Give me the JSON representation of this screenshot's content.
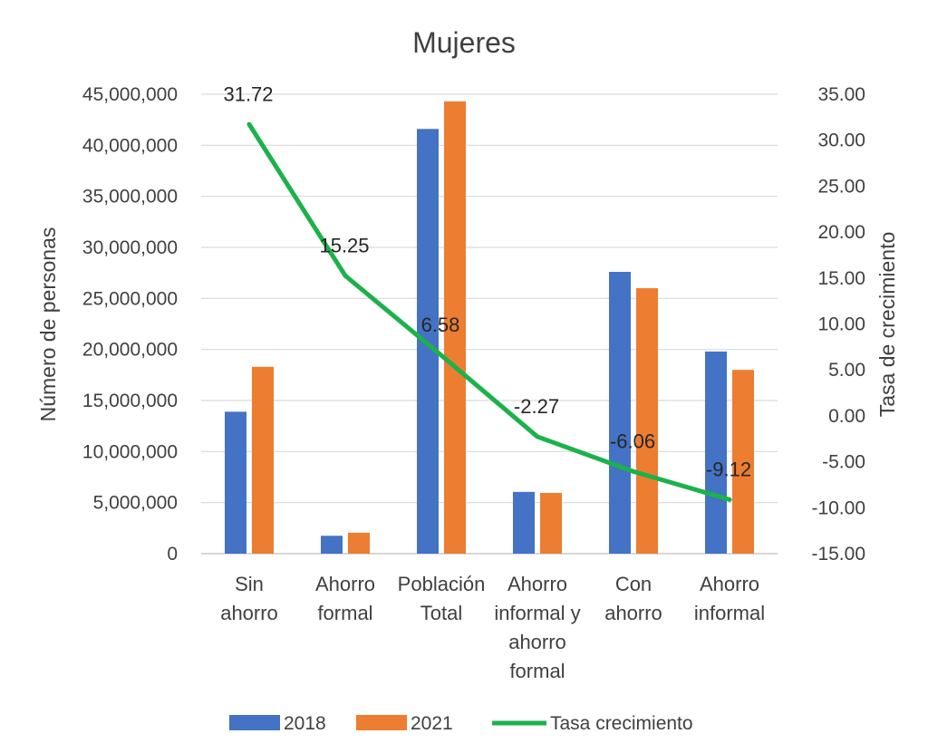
{
  "chart_data": {
    "type": "bar",
    "title": "Mujeres",
    "categories": [
      [
        "Sin",
        "ahorro"
      ],
      [
        "Ahorro",
        "formal"
      ],
      [
        "Población",
        "Total"
      ],
      [
        "Ahorro",
        "informal y",
        "ahorro",
        "formal"
      ],
      [
        "Con",
        "ahorro"
      ],
      [
        "Ahorro",
        "informal"
      ]
    ],
    "series": [
      {
        "name": "2018",
        "type": "bar",
        "axis": "left",
        "color": "#4472C4",
        "values": [
          13900000,
          1750000,
          41600000,
          6050000,
          27600000,
          19800000
        ]
      },
      {
        "name": "2021",
        "type": "bar",
        "axis": "left",
        "color": "#ED7D31",
        "values": [
          18300000,
          2050000,
          44300000,
          5950000,
          26000000,
          18000000
        ]
      },
      {
        "name": "Tasa crecimiento",
        "type": "line",
        "axis": "right",
        "color": "#1DB14B",
        "values": [
          31.72,
          15.25,
          6.58,
          -2.27,
          -6.06,
          -9.12
        ],
        "labels": [
          "31.72",
          "15.25",
          "6.58",
          "-2.27",
          "-6.06",
          "-9.12"
        ]
      }
    ],
    "ylabel": "Número de personas",
    "y2label": "Tasa de crecimiento",
    "ylim": [
      0,
      45000000
    ],
    "y2lim": [
      -15,
      35
    ],
    "yticks": [
      "0",
      "5,000,000",
      "10,000,000",
      "15,000,000",
      "20,000,000",
      "25,000,000",
      "30,000,000",
      "35,000,000",
      "40,000,000",
      "45,000,000"
    ],
    "y2ticks": [
      "-15.00",
      "-10.00",
      "-5.00",
      "0.00",
      "5.00",
      "10.00",
      "15.00",
      "20.00",
      "25.00",
      "30.00",
      "35.00"
    ],
    "grid": true,
    "legend_position": "bottom"
  }
}
